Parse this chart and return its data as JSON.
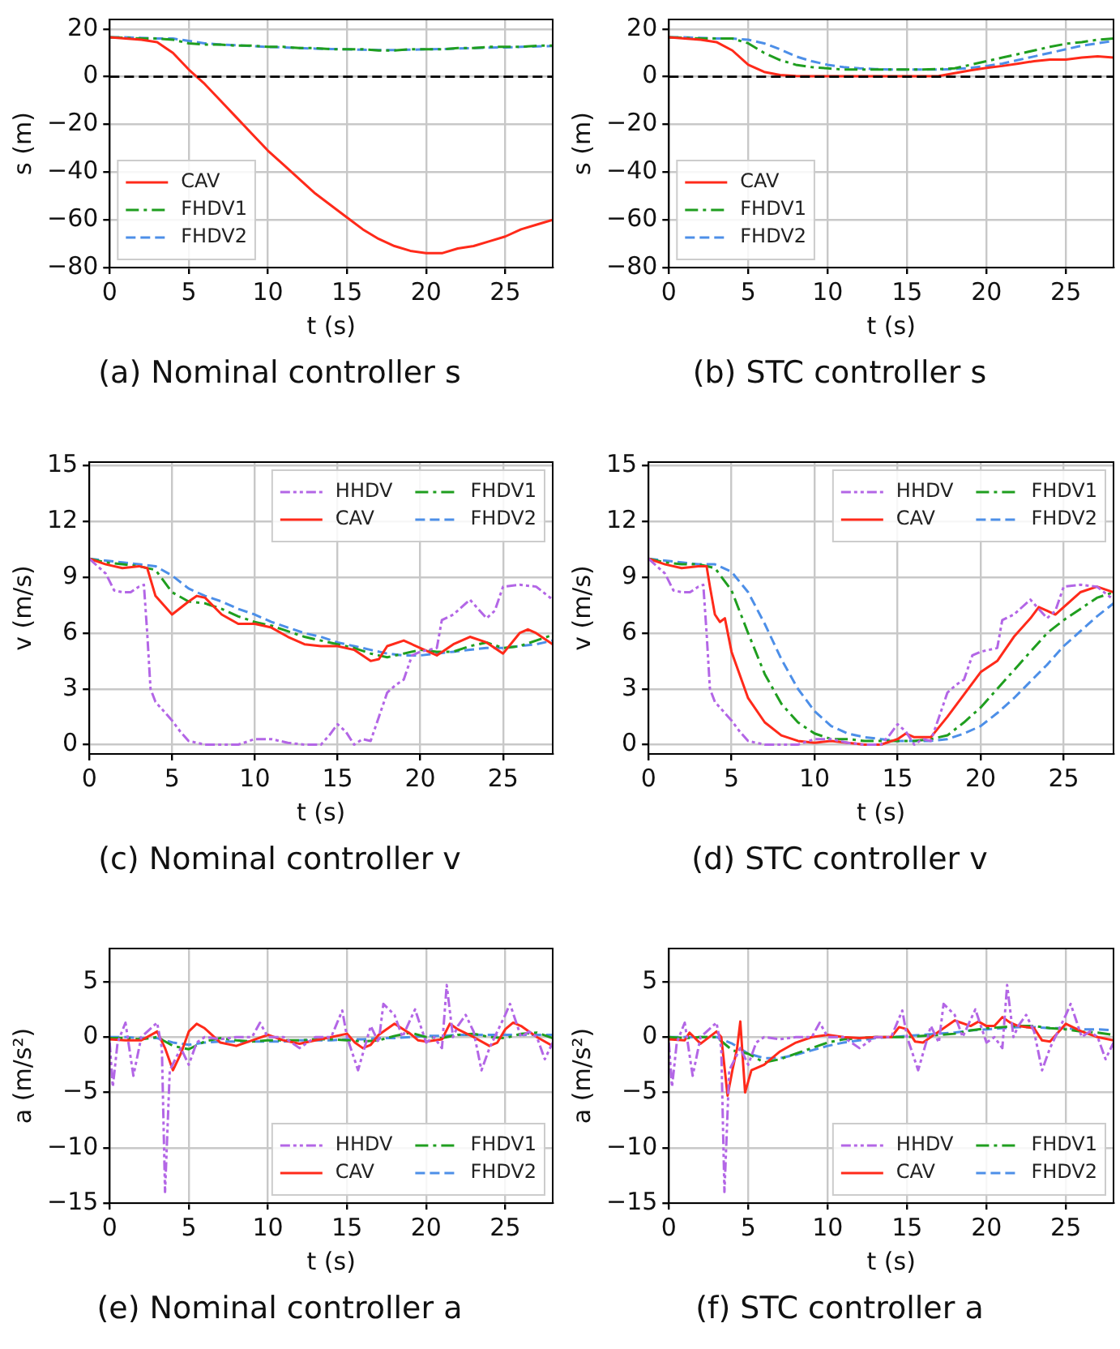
{
  "chart_data": [
    {
      "type": "line",
      "title": "(a) Nominal controller s",
      "xlabel": "t (s)",
      "ylabel": "s (m)",
      "xlim": [
        0,
        28
      ],
      "xticks": [
        0,
        5,
        10,
        15,
        20,
        25
      ],
      "ylim": [
        -80,
        24
      ],
      "yticks": [
        -80,
        -60,
        -40,
        -20,
        0,
        20
      ],
      "grid": true,
      "legend": "bottom left",
      "x": [
        0,
        1,
        2,
        3,
        4,
        5,
        6,
        7,
        8,
        9,
        10,
        11,
        12,
        13,
        14,
        15,
        16,
        17,
        18,
        19,
        20,
        21,
        22,
        23,
        24,
        25,
        26,
        27,
        28
      ],
      "ref_lines": [
        {
          "axis": "y",
          "value": 0,
          "color": "#000000",
          "line_style": "dashed"
        }
      ],
      "series": [
        {
          "name": "CAV",
          "color": "#ff2a1a",
          "line_style": "solid",
          "values": [
            16.5,
            16,
            15.5,
            14.5,
            10,
            3,
            -3,
            -10,
            -17,
            -24,
            -31,
            -37,
            -43,
            -49,
            -54,
            -59,
            -64,
            -68,
            -71,
            -73,
            -74,
            -74,
            -72,
            -71,
            -69,
            -67,
            -64,
            -62,
            -60
          ]
        },
        {
          "name": "FHDV1",
          "color": "#1f9e1f",
          "line_style": "dashdot",
          "values": [
            16.5,
            16.3,
            16,
            16,
            15.5,
            14,
            13.5,
            13.5,
            13,
            13,
            12.5,
            12.5,
            12,
            12,
            11.5,
            11.5,
            11.5,
            11,
            11,
            11.5,
            11.5,
            11.5,
            12,
            12,
            12.5,
            12.5,
            12.5,
            13,
            13
          ]
        },
        {
          "name": "FHDV2",
          "color": "#4d8fe8",
          "line_style": "dashed",
          "values": [
            16.5,
            16.5,
            16.3,
            16,
            16,
            15,
            14,
            13.5,
            13.2,
            12.8,
            12.5,
            12.3,
            12,
            11.8,
            11.6,
            11.5,
            11.3,
            11.2,
            11.2,
            11.3,
            11.5,
            11.6,
            11.8,
            12,
            12.2,
            12.3,
            12.5,
            12.7,
            12.9
          ]
        }
      ]
    },
    {
      "type": "line",
      "title": "(b) STC controller s",
      "xlabel": "t (s)",
      "ylabel": "s (m)",
      "xlim": [
        0,
        28
      ],
      "xticks": [
        0,
        5,
        10,
        15,
        20,
        25
      ],
      "ylim": [
        -80,
        24
      ],
      "yticks": [
        -80,
        -60,
        -40,
        -20,
        0,
        20
      ],
      "grid": true,
      "legend": "bottom left",
      "x": [
        0,
        1,
        2,
        3,
        4,
        5,
        6,
        7,
        8,
        9,
        10,
        11,
        12,
        13,
        14,
        15,
        16,
        17,
        18,
        19,
        20,
        21,
        22,
        23,
        24,
        25,
        26,
        27,
        28
      ],
      "ref_lines": [
        {
          "axis": "y",
          "value": 0,
          "color": "#000000",
          "line_style": "dashed"
        }
      ],
      "series": [
        {
          "name": "CAV",
          "color": "#ff2a1a",
          "line_style": "solid",
          "values": [
            16.5,
            16,
            15.5,
            14.5,
            11,
            5,
            2,
            0.7,
            0.3,
            0.2,
            0.2,
            0.2,
            0.2,
            0.2,
            0.2,
            0.2,
            0.2,
            0.3,
            1.5,
            2.7,
            3.7,
            4.5,
            5.5,
            6.5,
            7.2,
            7.2,
            8,
            8.5,
            8
          ]
        },
        {
          "name": "FHDV1",
          "color": "#1f9e1f",
          "line_style": "dashdot",
          "values": [
            16.5,
            16.3,
            16,
            16,
            16,
            14,
            10,
            7,
            5,
            4,
            3.5,
            3,
            3,
            3,
            3,
            3,
            3,
            3.2,
            3.5,
            5,
            6.5,
            8,
            9.5,
            11,
            12.5,
            13.8,
            14.5,
            15.5,
            16
          ]
        },
        {
          "name": "FHDV2",
          "color": "#4d8fe8",
          "line_style": "dashed",
          "values": [
            16.5,
            16.5,
            16.3,
            16,
            16,
            15.5,
            14,
            11.5,
            8.5,
            6.5,
            5,
            4,
            3.5,
            3.2,
            3,
            3,
            3,
            3,
            3.2,
            3.7,
            4.5,
            5.5,
            7,
            8.5,
            10,
            11.5,
            13,
            14,
            15
          ]
        }
      ]
    },
    {
      "type": "line",
      "title": "(c) Nominal controller v",
      "xlabel": "t (s)",
      "ylabel": "v (m/s)",
      "xlim": [
        0,
        28
      ],
      "xticks": [
        0,
        5,
        10,
        15,
        20,
        25
      ],
      "ylim": [
        -0.5,
        15.2
      ],
      "yticks": [
        0,
        3,
        6,
        9,
        12,
        15
      ],
      "grid": true,
      "legend": "top right",
      "x": [
        0,
        1,
        2,
        3,
        4,
        5,
        6,
        7,
        8,
        9,
        10,
        11,
        12,
        13,
        14,
        15,
        16,
        17,
        18,
        19,
        20,
        21,
        22,
        23,
        24,
        25,
        26,
        27,
        28
      ],
      "series": [
        {
          "name": "HHDV",
          "color": "#b366e6",
          "line_style": "dashdotdot",
          "x": [
            0,
            0.5,
            1,
            1.5,
            2,
            2.5,
            3,
            3.3,
            3.5,
            3.7,
            4,
            4.5,
            5,
            5.5,
            6,
            7,
            8,
            9,
            10,
            11,
            12,
            13,
            14,
            14.5,
            15,
            15.5,
            16,
            16.5,
            17,
            17.5,
            18,
            18.5,
            19,
            19.5,
            20,
            21,
            21.3,
            22,
            23,
            24,
            24.5,
            25,
            26,
            27,
            28
          ],
          "values": [
            10,
            9.6,
            9.2,
            8.3,
            8.2,
            8.2,
            8.5,
            8.6,
            6,
            3,
            2.3,
            1.8,
            1.3,
            0.7,
            0.2,
            0,
            0,
            0,
            0.3,
            0.3,
            0.1,
            0,
            0,
            0.5,
            1.1,
            0.7,
            0,
            0.3,
            0.2,
            1.5,
            2.8,
            3.2,
            3.5,
            4.8,
            5,
            5.2,
            6.7,
            7,
            7.8,
            6.8,
            7.2,
            8.5,
            8.6,
            8.5,
            7.8
          ]
        },
        {
          "name": "CAV",
          "color": "#ff2a1a",
          "line_style": "solid",
          "x": [
            0,
            1,
            2,
            3,
            3.5,
            4,
            5,
            6,
            6.5,
            7,
            8,
            9,
            10,
            11,
            12,
            13,
            14,
            15,
            16,
            17,
            17.5,
            18,
            19,
            20,
            21,
            22,
            23,
            24,
            25,
            26,
            26.5,
            27,
            28
          ],
          "values": [
            10,
            9.7,
            9.5,
            9.6,
            9.5,
            8,
            7,
            7.7,
            8,
            7.9,
            7,
            6.5,
            6.5,
            6.3,
            5.8,
            5.4,
            5.3,
            5.3,
            5.1,
            4.5,
            4.6,
            5.3,
            5.6,
            5.2,
            4.8,
            5.4,
            5.8,
            5.5,
            4.9,
            6,
            6.2,
            6,
            5.4
          ]
        },
        {
          "name": "FHDV1",
          "color": "#1f9e1f",
          "line_style": "dashdot",
          "values": [
            10,
            9.8,
            9.7,
            9.6,
            9.4,
            8.2,
            7.7,
            7.6,
            7.3,
            6.9,
            6.6,
            6.4,
            6.1,
            5.8,
            5.6,
            5.4,
            5.2,
            4.9,
            4.7,
            4.9,
            5.1,
            5,
            5,
            5.3,
            5.5,
            5.2,
            5.3,
            5.6,
            5.9
          ]
        },
        {
          "name": "FHDV2",
          "color": "#4d8fe8",
          "line_style": "dashed",
          "values": [
            10,
            9.9,
            9.8,
            9.7,
            9.6,
            9.1,
            8.4,
            8,
            7.7,
            7.3,
            7,
            6.6,
            6.3,
            6,
            5.8,
            5.5,
            5.3,
            5.1,
            4.9,
            4.8,
            4.8,
            4.9,
            5,
            5.1,
            5.2,
            5.2,
            5.3,
            5.4,
            5.6
          ]
        }
      ]
    },
    {
      "type": "line",
      "title": "(d) STC controller v",
      "xlabel": "t (s)",
      "ylabel": "v (m/s)",
      "xlim": [
        0,
        28
      ],
      "xticks": [
        0,
        5,
        10,
        15,
        20,
        25
      ],
      "ylim": [
        -0.5,
        15.2
      ],
      "yticks": [
        0,
        3,
        6,
        9,
        12,
        15
      ],
      "grid": true,
      "legend": "top right",
      "x": [
        0,
        1,
        2,
        3,
        4,
        5,
        6,
        7,
        8,
        9,
        10,
        11,
        12,
        13,
        14,
        15,
        16,
        17,
        18,
        19,
        20,
        21,
        22,
        23,
        24,
        25,
        26,
        27,
        28
      ],
      "series": [
        {
          "name": "HHDV",
          "color": "#b366e6",
          "line_style": "dashdotdot",
          "x": [
            0,
            0.5,
            1,
            1.5,
            2,
            2.5,
            3,
            3.3,
            3.5,
            3.7,
            4,
            4.5,
            5,
            5.5,
            6,
            7,
            8,
            9,
            10,
            11,
            12,
            13,
            14,
            14.5,
            15,
            15.5,
            16,
            16.5,
            17,
            17.5,
            18,
            18.5,
            19,
            19.5,
            20,
            21,
            21.3,
            22,
            23,
            24,
            24.5,
            25,
            26,
            27,
            28
          ],
          "values": [
            10,
            9.6,
            9.2,
            8.3,
            8.2,
            8.2,
            8.5,
            8.6,
            6,
            3,
            2.3,
            1.8,
            1.3,
            0.7,
            0.2,
            0,
            0,
            0,
            0.3,
            0.3,
            0.1,
            0,
            0,
            0.5,
            1.1,
            0.7,
            0,
            0.3,
            0.2,
            1.5,
            2.8,
            3.2,
            3.5,
            4.8,
            5,
            5.2,
            6.7,
            7,
            7.8,
            6.8,
            7.2,
            8.5,
            8.6,
            8.5,
            7.8
          ]
        },
        {
          "name": "CAV",
          "color": "#ff2a1a",
          "line_style": "solid",
          "x": [
            0,
            1,
            2,
            3,
            3.5,
            3.7,
            4,
            4.3,
            4.6,
            5,
            6,
            7,
            8,
            9,
            10,
            11,
            12,
            13,
            14,
            15,
            15.5,
            16,
            17,
            18,
            19,
            20,
            21,
            22,
            23,
            23.5,
            24,
            24.5,
            25,
            26,
            27,
            28
          ],
          "values": [
            10,
            9.7,
            9.5,
            9.6,
            9.6,
            8.5,
            7,
            6.6,
            6.8,
            5,
            2.5,
            1.2,
            0.5,
            0.2,
            0.1,
            0.2,
            0.1,
            0,
            0,
            0.3,
            0.6,
            0.4,
            0.4,
            1.5,
            2.7,
            3.9,
            4.5,
            5.8,
            6.8,
            7.4,
            7.2,
            7,
            7.4,
            8.2,
            8.5,
            8.2
          ]
        },
        {
          "name": "FHDV1",
          "color": "#1f9e1f",
          "line_style": "dashdot",
          "values": [
            10,
            9.8,
            9.7,
            9.7,
            9.5,
            8.3,
            6,
            3.8,
            2.2,
            1.2,
            0.6,
            0.3,
            0.3,
            0.2,
            0.2,
            0.2,
            0.2,
            0.3,
            0.5,
            1.2,
            2,
            3,
            4,
            5,
            6,
            6.7,
            7.3,
            7.9,
            8.2
          ]
        },
        {
          "name": "FHDV2",
          "color": "#4d8fe8",
          "line_style": "dashed",
          "values": [
            10,
            9.9,
            9.8,
            9.7,
            9.7,
            9.3,
            8.2,
            6.5,
            4.6,
            3,
            1.8,
            1,
            0.6,
            0.4,
            0.3,
            0.2,
            0.2,
            0.2,
            0.3,
            0.6,
            1,
            1.7,
            2.5,
            3.4,
            4.3,
            5.3,
            6.1,
            6.9,
            7.6
          ]
        }
      ]
    },
    {
      "type": "line",
      "title": "(e) Nominal controller a",
      "xlabel": "t (s)",
      "ylabel": "a (m/s²)",
      "xlim": [
        0,
        28
      ],
      "xticks": [
        0,
        5,
        10,
        15,
        20,
        25
      ],
      "ylim": [
        -15,
        8
      ],
      "yticks": [
        -15,
        -10,
        -5,
        0,
        5
      ],
      "grid": true,
      "legend": "bottom right",
      "x": [
        0,
        1,
        2,
        3,
        4,
        5,
        6,
        7,
        8,
        9,
        10,
        11,
        12,
        13,
        14,
        15,
        16,
        17,
        18,
        19,
        20,
        21,
        22,
        23,
        24,
        25,
        26,
        27,
        28
      ],
      "series": [
        {
          "name": "HHDV",
          "color": "#b366e6",
          "line_style": "dashdotdot",
          "x": [
            0,
            0.2,
            0.5,
            1,
            1.5,
            2,
            3,
            3.3,
            3.5,
            3.8,
            4.5,
            5,
            5.5,
            6,
            7,
            8,
            9,
            9.5,
            10,
            11,
            12,
            13,
            14,
            14.7,
            15,
            15.7,
            16.5,
            17,
            17.3,
            18,
            18.5,
            19.3,
            20,
            20.5,
            21,
            21.3,
            21.7,
            22,
            22.5,
            23,
            23.5,
            24,
            25,
            25.3,
            26,
            26.5,
            27,
            27.5,
            28
          ],
          "values": [
            -0.5,
            -4.5,
            -0.5,
            1.3,
            -3.5,
            0,
            1.3,
            -1,
            -14,
            -3,
            -1,
            -2.5,
            -0.5,
            0,
            -0.2,
            0,
            0,
            1.3,
            0,
            0,
            -1,
            0,
            0,
            2.4,
            0,
            -3,
            1,
            -0.5,
            3,
            2,
            0,
            2.5,
            -0.5,
            0,
            -1,
            4.7,
            0,
            1,
            2,
            0.5,
            -3,
            -1,
            2,
            3,
            0,
            0.5,
            0,
            -2,
            -0.5
          ]
        },
        {
          "name": "CAV",
          "color": "#ff2a1a",
          "line_style": "solid",
          "x": [
            0,
            1,
            2,
            3,
            3.5,
            4,
            4.5,
            5,
            5.5,
            6,
            7,
            8,
            9,
            10,
            11,
            12,
            13,
            14,
            15,
            15.5,
            16,
            16.5,
            17,
            18,
            19,
            19.5,
            20,
            21,
            21.5,
            22,
            23,
            24,
            24.5,
            25,
            25.5,
            26,
            27,
            28
          ],
          "values": [
            -0.2,
            -0.3,
            -0.3,
            0.5,
            -1,
            -3,
            -1.5,
            0.5,
            1.2,
            0.8,
            -0.5,
            -0.8,
            -0.3,
            0.2,
            -0.3,
            -0.6,
            -0.3,
            0,
            0.3,
            -0.5,
            -1,
            -0.7,
            0.2,
            1.2,
            0.3,
            -0.3,
            -0.4,
            -0.2,
            1.2,
            0.7,
            0,
            -0.8,
            -0.5,
            0.7,
            1.3,
            1,
            0,
            -0.8
          ]
        },
        {
          "name": "FHDV1",
          "color": "#1f9e1f",
          "line_style": "dashdot",
          "values": [
            -0.1,
            -0.1,
            -0.2,
            0,
            -0.8,
            -1.1,
            -0.4,
            -0.1,
            -0.3,
            -0.4,
            -0.3,
            -0.3,
            -0.3,
            -0.2,
            -0.2,
            -0.3,
            -0.4,
            -0.3,
            0.1,
            0.4,
            0,
            -0.1,
            0.2,
            0.3,
            0,
            -0.1,
            0.3,
            0.4,
            -0.1
          ]
        },
        {
          "name": "FHDV2",
          "color": "#4d8fe8",
          "line_style": "dashed",
          "values": [
            0,
            0,
            -0.1,
            -0.1,
            -0.5,
            -0.7,
            -0.5,
            -0.4,
            -0.4,
            -0.4,
            -0.4,
            -0.4,
            -0.3,
            -0.3,
            -0.3,
            -0.2,
            -0.2,
            -0.1,
            -0.1,
            0,
            0.1,
            0.1,
            0.2,
            0.2,
            0.2,
            0.2,
            0.2,
            0.2,
            0.2
          ]
        }
      ]
    },
    {
      "type": "line",
      "title": "(f) STC controller a",
      "xlabel": "t (s)",
      "ylabel": "a (m/s²)",
      "xlim": [
        0,
        28
      ],
      "xticks": [
        0,
        5,
        10,
        15,
        20,
        25
      ],
      "ylim": [
        -15,
        8
      ],
      "yticks": [
        -15,
        -10,
        -5,
        0,
        5
      ],
      "grid": true,
      "legend": "bottom right",
      "x": [
        0,
        1,
        2,
        3,
        4,
        5,
        6,
        7,
        8,
        9,
        10,
        11,
        12,
        13,
        14,
        15,
        16,
        17,
        18,
        19,
        20,
        21,
        22,
        23,
        24,
        25,
        26,
        27,
        28
      ],
      "series": [
        {
          "name": "HHDV",
          "color": "#b366e6",
          "line_style": "dashdotdot",
          "x": [
            0,
            0.2,
            0.5,
            1,
            1.5,
            2,
            3,
            3.3,
            3.5,
            3.8,
            4.5,
            5,
            5.5,
            6,
            7,
            8,
            9,
            9.5,
            10,
            11,
            12,
            13,
            14,
            14.7,
            15,
            15.7,
            16.5,
            17,
            17.3,
            18,
            18.5,
            19.3,
            20,
            20.5,
            21,
            21.3,
            21.7,
            22,
            22.5,
            23,
            23.5,
            24,
            25,
            25.3,
            26,
            26.5,
            27,
            27.5,
            28
          ],
          "values": [
            -0.5,
            -4.5,
            -0.5,
            1.3,
            -3.5,
            0,
            1.3,
            -1,
            -14,
            -3,
            -1,
            -2.5,
            -0.5,
            0,
            -0.2,
            0,
            0,
            1.3,
            0,
            0,
            -1,
            0,
            0,
            2.4,
            0,
            -3,
            1,
            -0.5,
            3,
            2,
            0,
            2.5,
            -0.5,
            0,
            -1,
            4.7,
            0,
            1,
            2,
            0.5,
            -3,
            -1,
            2,
            3,
            0,
            0.5,
            0,
            -2,
            -0.5
          ]
        },
        {
          "name": "CAV",
          "color": "#ff2a1a",
          "line_style": "solid",
          "x": [
            0,
            1,
            1.3,
            2,
            3,
            3.3,
            3.7,
            4,
            4.3,
            4.5,
            4.8,
            5.2,
            6,
            7,
            8,
            9,
            10,
            11,
            12,
            13,
            14,
            14.5,
            15,
            15.5,
            16,
            17,
            18,
            19,
            19.5,
            20,
            20.5,
            21,
            21.5,
            22,
            23,
            23.5,
            24,
            25,
            26,
            27,
            28
          ],
          "values": [
            -0.2,
            -0.3,
            0.4,
            -0.6,
            0.5,
            0,
            -5.3,
            -3,
            -1,
            1.4,
            -5,
            -3,
            -2.5,
            -1.3,
            -0.5,
            0,
            0.2,
            0,
            -0.1,
            0,
            0,
            0.9,
            0.7,
            -0.4,
            -0.5,
            0.5,
            1.5,
            1,
            1.4,
            1,
            1,
            1.8,
            1.3,
            1,
            0.8,
            -0.3,
            -0.4,
            1.2,
            0.5,
            0,
            -0.3
          ]
        },
        {
          "name": "FHDV1",
          "color": "#1f9e1f",
          "line_style": "dashdot",
          "values": [
            0,
            -0.1,
            0,
            0,
            -1.2,
            -1.5,
            -2.3,
            -2,
            -1.5,
            -1,
            -0.5,
            -0.2,
            -0.1,
            0,
            0,
            0,
            0.1,
            0.2,
            0.3,
            0.6,
            0.8,
            0.9,
            1,
            1,
            0.8,
            0.7,
            0.5,
            0.4,
            0.2
          ]
        },
        {
          "name": "FHDV2",
          "color": "#4d8fe8",
          "line_style": "dashed",
          "values": [
            0,
            0,
            0,
            0,
            -0.6,
            -1.5,
            -1.9,
            -1.9,
            -1.6,
            -1.2,
            -0.8,
            -0.5,
            -0.3,
            -0.1,
            0,
            0.1,
            0.2,
            0.3,
            0.4,
            0.6,
            0.7,
            0.8,
            0.9,
            0.9,
            0.8,
            0.8,
            0.7,
            0.7,
            0.6
          ]
        }
      ]
    }
  ]
}
